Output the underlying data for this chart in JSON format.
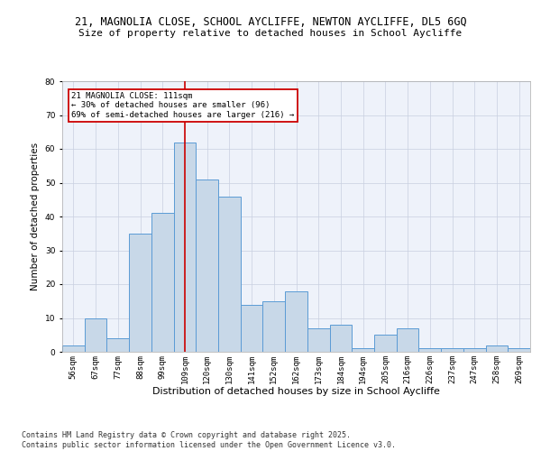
{
  "title_line1": "21, MAGNOLIA CLOSE, SCHOOL AYCLIFFE, NEWTON AYCLIFFE, DL5 6GQ",
  "title_line2": "Size of property relative to detached houses in School Aycliffe",
  "xlabel": "Distribution of detached houses by size in School Aycliffe",
  "ylabel": "Number of detached properties",
  "bar_values": [
    2,
    10,
    4,
    35,
    41,
    62,
    51,
    46,
    14,
    15,
    18,
    7,
    8,
    1,
    5,
    7,
    1,
    1,
    1,
    2,
    1
  ],
  "bar_labels": [
    "56sqm",
    "67sqm",
    "77sqm",
    "88sqm",
    "99sqm",
    "109sqm",
    "120sqm",
    "130sqm",
    "141sqm",
    "152sqm",
    "162sqm",
    "173sqm",
    "184sqm",
    "194sqm",
    "205sqm",
    "216sqm",
    "226sqm",
    "237sqm",
    "247sqm",
    "258sqm",
    "269sqm"
  ],
  "bar_color": "#c8d8e8",
  "bar_edge_color": "#5b9bd5",
  "vline_x_index": 5,
  "vline_color": "#cc0000",
  "annotation_text": "21 MAGNOLIA CLOSE: 111sqm\n← 30% of detached houses are smaller (96)\n69% of semi-detached houses are larger (216) →",
  "annotation_box_color": "#cc0000",
  "ylim": [
    0,
    80
  ],
  "yticks": [
    0,
    10,
    20,
    30,
    40,
    50,
    60,
    70,
    80
  ],
  "background_color": "#eef2fa",
  "footer_text": "Contains HM Land Registry data © Crown copyright and database right 2025.\nContains public sector information licensed under the Open Government Licence v3.0.",
  "grid_color": "#c8cfe0",
  "title_fontsize": 8.5,
  "subtitle_fontsize": 8,
  "tick_fontsize": 6.5,
  "xlabel_fontsize": 8,
  "ylabel_fontsize": 7.5,
  "annotation_fontsize": 6.5,
  "footer_fontsize": 6
}
